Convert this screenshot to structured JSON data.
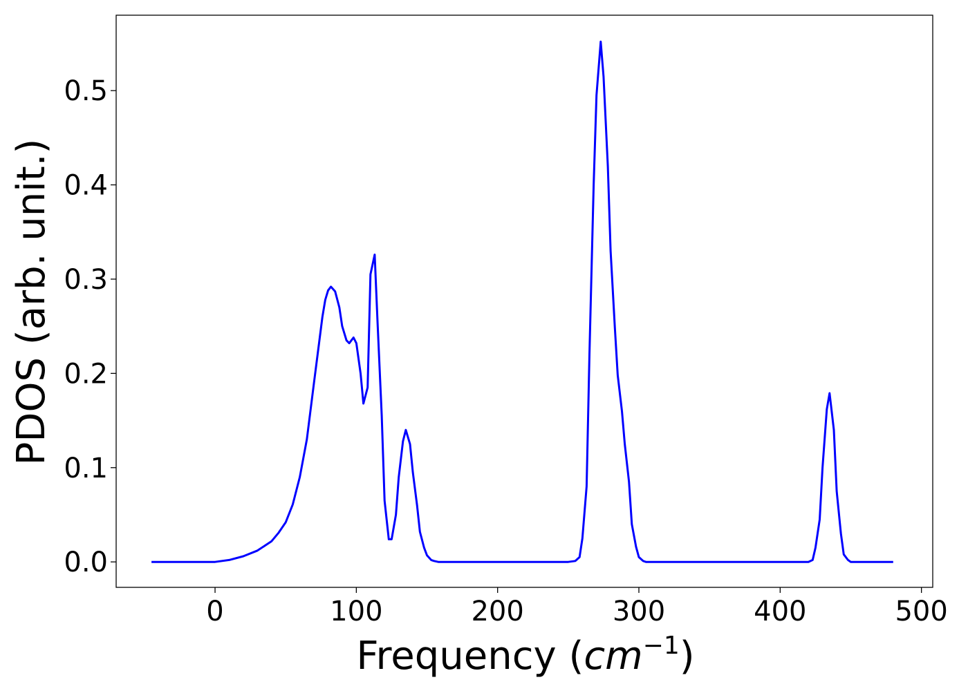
{
  "chart_data": {
    "type": "line",
    "title": "",
    "xlabel": {
      "prefix": "Frequency (",
      "unit_base": "cm",
      "unit_exponent": "−1",
      "suffix": ")"
    },
    "ylabel": "PDOS (arb. unit.)",
    "xlim": [
      -70,
      508
    ],
    "ylim": [
      -0.027,
      0.58
    ],
    "xticks": [
      0,
      100,
      200,
      300,
      400,
      500
    ],
    "xtick_labels": [
      "0",
      "100",
      "200",
      "300",
      "400",
      "500"
    ],
    "yticks": [
      0.0,
      0.1,
      0.2,
      0.3,
      0.4,
      0.5
    ],
    "ytick_labels": [
      "0.0",
      "0.1",
      "0.2",
      "0.3",
      "0.4",
      "0.5"
    ],
    "grid": false,
    "legend": "none",
    "series": [
      {
        "color": "#0000ff",
        "x": [
          -45,
          0,
          10,
          20,
          30,
          40,
          45,
          50,
          55,
          60,
          65,
          70,
          73,
          76,
          78,
          80,
          82,
          85,
          88,
          90,
          93,
          95,
          98,
          100,
          103,
          105,
          108,
          110,
          113,
          115,
          118,
          120,
          123,
          125,
          128,
          130,
          133,
          135,
          138,
          140,
          143,
          145,
          148,
          150,
          153,
          155,
          158,
          160,
          170,
          200,
          250,
          255,
          258,
          260,
          263,
          265,
          268,
          270,
          273,
          275,
          278,
          280,
          283,
          285,
          288,
          290,
          293,
          295,
          298,
          300,
          303,
          305,
          308,
          310,
          320,
          400,
          420,
          423,
          425,
          428,
          430,
          433,
          435,
          438,
          440,
          443,
          445,
          448,
          450,
          453,
          455,
          460,
          480
        ],
        "y": [
          0.0,
          0.0,
          0.002,
          0.006,
          0.012,
          0.022,
          0.031,
          0.042,
          0.061,
          0.09,
          0.13,
          0.19,
          0.225,
          0.26,
          0.278,
          0.288,
          0.292,
          0.287,
          0.27,
          0.25,
          0.235,
          0.232,
          0.238,
          0.232,
          0.2,
          0.168,
          0.185,
          0.305,
          0.326,
          0.255,
          0.155,
          0.065,
          0.024,
          0.024,
          0.05,
          0.09,
          0.128,
          0.14,
          0.125,
          0.095,
          0.06,
          0.032,
          0.015,
          0.007,
          0.002,
          0.001,
          0.0,
          0.0,
          0.0,
          0.0,
          0.0,
          0.001,
          0.005,
          0.025,
          0.08,
          0.22,
          0.4,
          0.495,
          0.552,
          0.515,
          0.42,
          0.33,
          0.248,
          0.198,
          0.16,
          0.125,
          0.085,
          0.04,
          0.016,
          0.005,
          0.001,
          0.0,
          0.0,
          0.0,
          0.0,
          0.0,
          0.0,
          0.002,
          0.015,
          0.045,
          0.1,
          0.162,
          0.179,
          0.14,
          0.075,
          0.03,
          0.008,
          0.002,
          0.0,
          0.0,
          0.0,
          0.0,
          0.0
        ]
      }
    ]
  }
}
